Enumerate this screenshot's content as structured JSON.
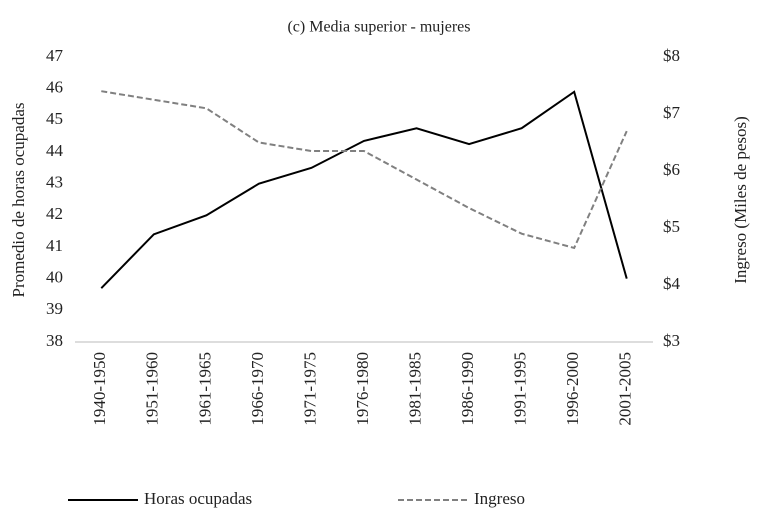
{
  "chart_data": {
    "type": "line",
    "title": "(c) Media superior - mujeres",
    "y_label": "Promedio de horas ocupadas",
    "y2_label": "Ingreso (Miles de pesos)",
    "categories": [
      "1940-1950",
      "1951-1960",
      "1961-1965",
      "1966-1970",
      "1971-1975",
      "1976-1980",
      "1981-1985",
      "1986-1990",
      "1991-1995",
      "1996-2000",
      "2001-2005"
    ],
    "series": [
      {
        "name": "Horas ocupadas",
        "color": "#000000",
        "dash": "solid",
        "values": [
          39.7,
          41.4,
          42.0,
          43.0,
          43.5,
          44.35,
          44.75,
          44.25,
          44.75,
          45.9,
          40.0
        ]
      },
      {
        "name": "Ingreso",
        "color": "#808080",
        "dash": "dashed",
        "axis": "y2",
        "values": [
          7.4,
          7.25,
          7.1,
          6.5,
          6.35,
          6.35,
          5.85,
          5.35,
          4.9,
          4.65,
          6.7
        ]
      }
    ],
    "ylim": [
      38,
      47
    ],
    "yticks": [
      38,
      39,
      40,
      41,
      42,
      43,
      44,
      45,
      46,
      47
    ],
    "y2lim": [
      3,
      8
    ],
    "y2ticks": [
      {
        "value": 3,
        "label": "$3"
      },
      {
        "value": 4,
        "label": "$4"
      },
      {
        "value": 5,
        "label": "$5"
      },
      {
        "value": 6,
        "label": "$6"
      },
      {
        "value": 7,
        "label": "$7"
      },
      {
        "value": 8,
        "label": "$8"
      }
    ],
    "grid": false,
    "legend": "bottom"
  }
}
